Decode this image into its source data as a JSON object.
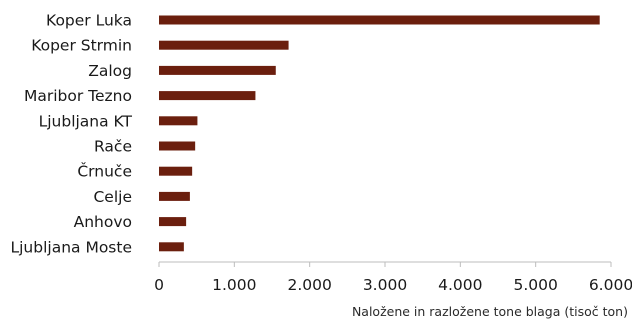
{
  "chart_data": {
    "type": "bar",
    "orientation": "horizontal",
    "categories": [
      "Koper Luka",
      "Koper Strmin",
      "Zalog",
      "Maribor Tezno",
      "Ljubljana KT",
      "Rače",
      "Črnuče",
      "Celje",
      "Anhovo",
      "Ljubljana Moste"
    ],
    "values": [
      5850,
      1720,
      1550,
      1280,
      510,
      480,
      440,
      410,
      360,
      330
    ],
    "xlabel": "Naložene in razložene tone blaga (tisoč ton)",
    "ylabel": "",
    "xlim": [
      0,
      6000
    ],
    "xticks": [
      0,
      1000,
      2000,
      3000,
      4000,
      5000,
      6000
    ],
    "xtick_labels": [
      "0",
      "1.000",
      "2.000",
      "3.000",
      "4.000",
      "5.000",
      "6.000"
    ],
    "grid": false,
    "bar_color": "#6b1f0e"
  }
}
